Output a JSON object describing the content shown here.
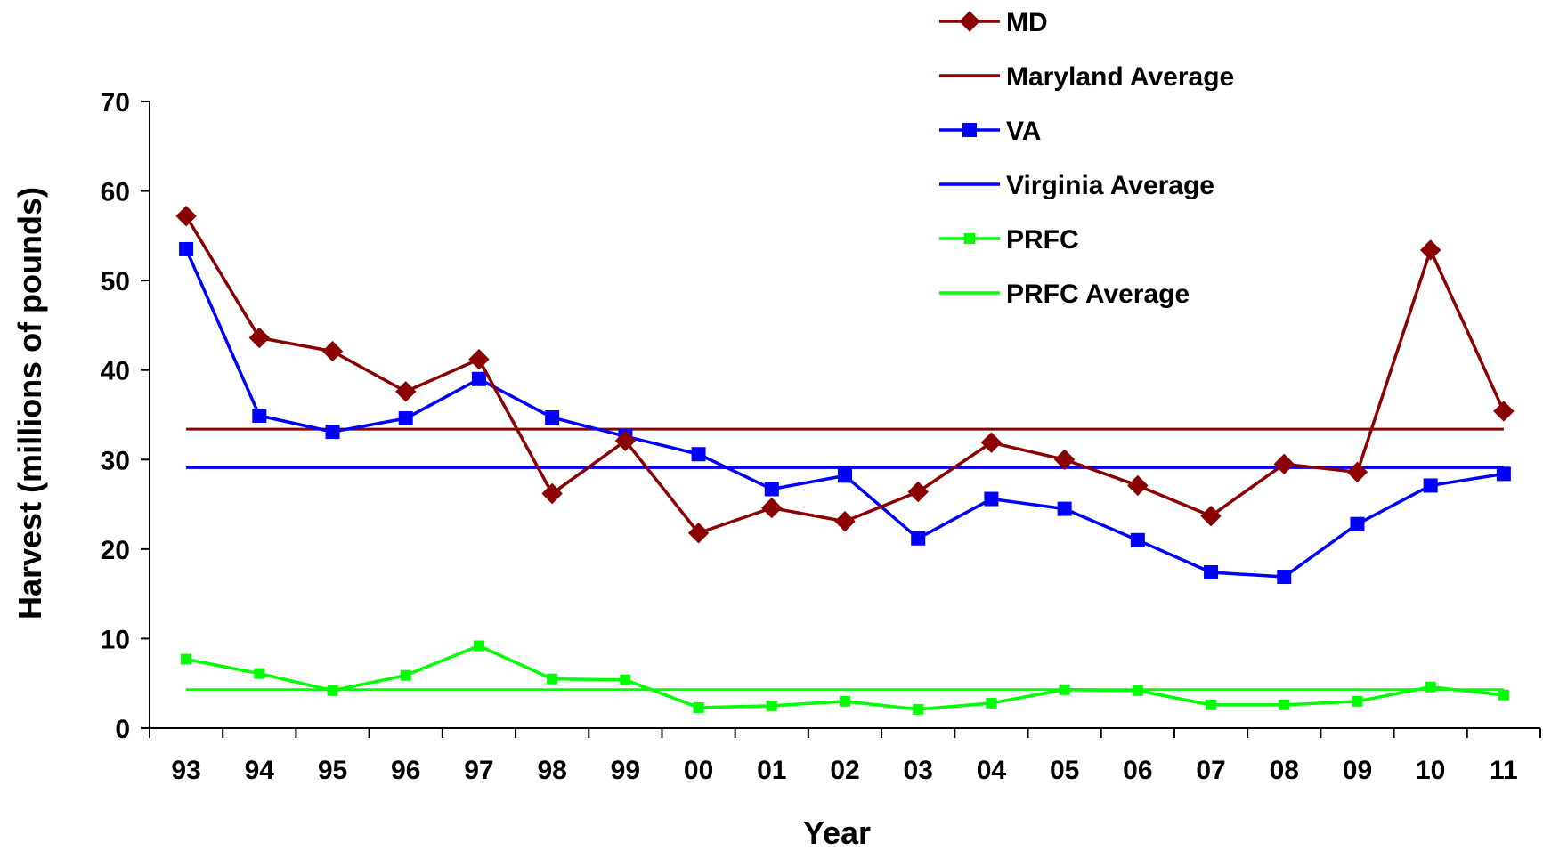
{
  "chart_data": {
    "type": "line",
    "xlabel": "Year",
    "ylabel": "Harvest (millions of pounds)",
    "categories": [
      "93",
      "94",
      "95",
      "96",
      "97",
      "98",
      "99",
      "00",
      "01",
      "02",
      "03",
      "04",
      "05",
      "06",
      "07",
      "08",
      "09",
      "10",
      "11"
    ],
    "ylim": [
      0,
      70
    ],
    "yticks": [
      0,
      10,
      20,
      30,
      40,
      50,
      60,
      70
    ],
    "grid": false,
    "legend_position": "top-right",
    "series": [
      {
        "name": "MD",
        "color": "#8B0000",
        "marker": "diamond",
        "values": [
          57.2,
          43.6,
          42.1,
          37.6,
          41.2,
          26.2,
          32.1,
          21.8,
          24.6,
          23.1,
          26.4,
          31.9,
          30.0,
          27.1,
          23.7,
          29.5,
          28.6,
          53.4,
          35.4
        ]
      },
      {
        "name": "Maryland Average",
        "color": "#8B0000",
        "marker": "none",
        "constant": 33.4
      },
      {
        "name": "VA",
        "color": "#0000FF",
        "marker": "square",
        "values": [
          53.5,
          34.9,
          33.1,
          34.6,
          39.0,
          34.7,
          32.6,
          30.6,
          26.7,
          28.2,
          21.2,
          25.6,
          24.5,
          21.0,
          17.4,
          16.9,
          22.8,
          27.1,
          28.4
        ]
      },
      {
        "name": "Virginia Average",
        "color": "#0000FF",
        "marker": "none",
        "constant": 29.1
      },
      {
        "name": "PRFC",
        "color": "#00FF00",
        "marker": "square-small",
        "values": [
          7.7,
          6.1,
          4.2,
          5.9,
          9.2,
          5.5,
          5.4,
          2.3,
          2.5,
          3.0,
          2.1,
          2.8,
          4.3,
          4.2,
          2.6,
          2.6,
          3.0,
          4.6,
          3.7
        ]
      },
      {
        "name": "PRFC Average",
        "color": "#00FF00",
        "marker": "none",
        "constant": 4.3
      }
    ]
  }
}
